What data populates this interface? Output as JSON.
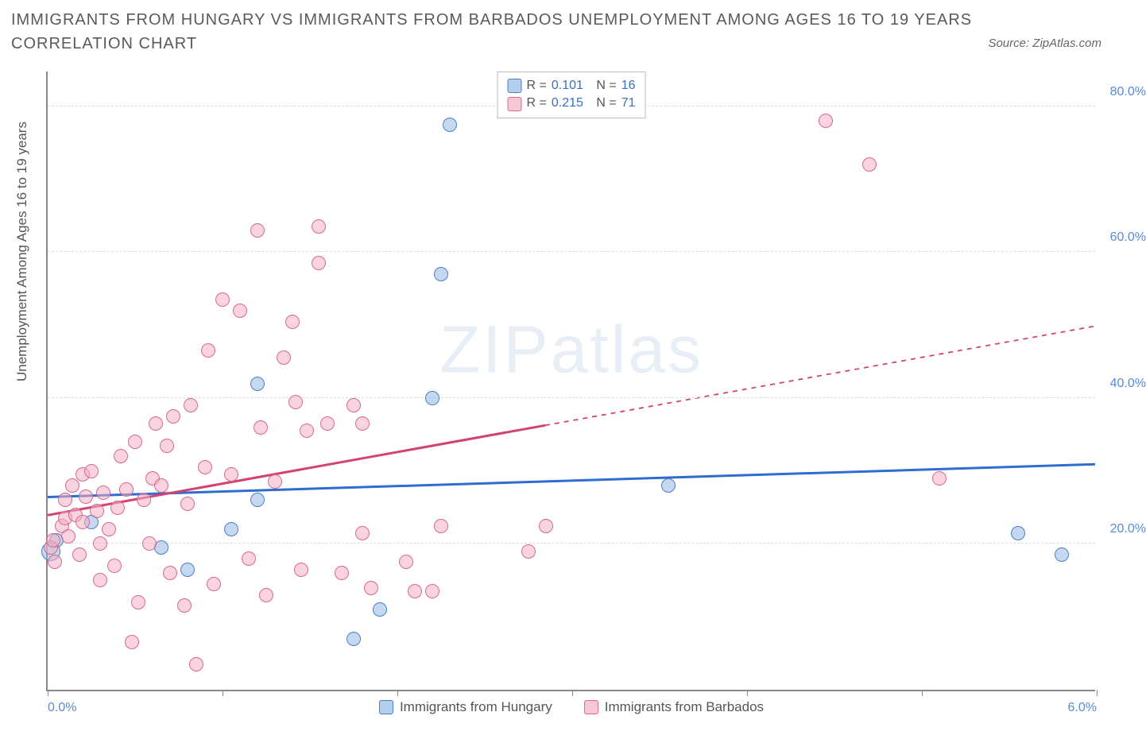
{
  "title": "IMMIGRANTS FROM HUNGARY VS IMMIGRANTS FROM BARBADOS UNEMPLOYMENT AMONG AGES 16 TO 19 YEARS CORRELATION CHART",
  "source": "Source: ZipAtlas.com",
  "ylabel": "Unemployment Among Ages 16 to 19 years",
  "watermark_a": "ZIP",
  "watermark_b": "atlas",
  "chart": {
    "type": "scatter",
    "xlim": [
      0.0,
      6.0
    ],
    "ylim": [
      0.0,
      85.0
    ],
    "x_ticks": [
      0.0,
      1.0,
      2.0,
      3.0,
      4.0,
      5.0,
      6.0
    ],
    "x_tick_labels_shown": {
      "0": "0.0%",
      "6": "6.0%"
    },
    "y_ticks": [
      20.0,
      40.0,
      60.0,
      80.0
    ],
    "y_tick_labels": [
      "20.0%",
      "40.0%",
      "60.0%",
      "80.0%"
    ],
    "grid_color": "#dddddd",
    "background_color": "#ffffff",
    "marker_radius": 9,
    "marker_radius_large": 12,
    "series": [
      {
        "name": "Immigrants from Hungary",
        "color_fill": "#94b9e6",
        "color_stroke": "#4a7fc4",
        "r": "0.101",
        "n": "16",
        "trend": {
          "y_at_xmin": 26.5,
          "y_at_xmax": 31.0,
          "solid_until_x": 6.0,
          "stroke": "#2e6cd0",
          "width": 3
        },
        "points": [
          {
            "x": 0.02,
            "y": 19.0,
            "r": 12
          },
          {
            "x": 0.05,
            "y": 20.5
          },
          {
            "x": 0.25,
            "y": 23.0
          },
          {
            "x": 0.65,
            "y": 19.5
          },
          {
            "x": 0.8,
            "y": 16.5
          },
          {
            "x": 1.05,
            "y": 22.0
          },
          {
            "x": 1.2,
            "y": 26.0
          },
          {
            "x": 1.2,
            "y": 42.0
          },
          {
            "x": 1.75,
            "y": 7.0
          },
          {
            "x": 1.9,
            "y": 11.0
          },
          {
            "x": 2.2,
            "y": 40.0
          },
          {
            "x": 2.25,
            "y": 57.0
          },
          {
            "x": 2.3,
            "y": 77.5
          },
          {
            "x": 3.55,
            "y": 28.0
          },
          {
            "x": 5.55,
            "y": 21.5
          },
          {
            "x": 5.8,
            "y": 18.5
          }
        ]
      },
      {
        "name": "Immigrants from Barbados",
        "color_fill": "#f4afc3",
        "color_stroke": "#d46a8f",
        "r": "0.215",
        "n": "71",
        "trend": {
          "y_at_xmin": 24.0,
          "y_at_xmax": 50.0,
          "solid_until_x": 2.85,
          "stroke": "#d4436f",
          "width": 3
        },
        "points": [
          {
            "x": 0.02,
            "y": 19.5
          },
          {
            "x": 0.03,
            "y": 20.5
          },
          {
            "x": 0.04,
            "y": 17.5
          },
          {
            "x": 0.08,
            "y": 22.5
          },
          {
            "x": 0.1,
            "y": 23.5
          },
          {
            "x": 0.1,
            "y": 26.0
          },
          {
            "x": 0.12,
            "y": 21.0
          },
          {
            "x": 0.14,
            "y": 28.0
          },
          {
            "x": 0.16,
            "y": 24.0
          },
          {
            "x": 0.18,
            "y": 18.5
          },
          {
            "x": 0.2,
            "y": 29.5
          },
          {
            "x": 0.2,
            "y": 23.0
          },
          {
            "x": 0.22,
            "y": 26.5
          },
          {
            "x": 0.25,
            "y": 30.0
          },
          {
            "x": 0.28,
            "y": 24.5
          },
          {
            "x": 0.3,
            "y": 20.0
          },
          {
            "x": 0.3,
            "y": 15.0
          },
          {
            "x": 0.32,
            "y": 27.0
          },
          {
            "x": 0.35,
            "y": 22.0
          },
          {
            "x": 0.38,
            "y": 17.0
          },
          {
            "x": 0.4,
            "y": 25.0
          },
          {
            "x": 0.42,
            "y": 32.0
          },
          {
            "x": 0.45,
            "y": 27.5
          },
          {
            "x": 0.48,
            "y": 6.5
          },
          {
            "x": 0.5,
            "y": 34.0
          },
          {
            "x": 0.52,
            "y": 12.0
          },
          {
            "x": 0.55,
            "y": 26.0
          },
          {
            "x": 0.58,
            "y": 20.0
          },
          {
            "x": 0.6,
            "y": 29.0
          },
          {
            "x": 0.62,
            "y": 36.5
          },
          {
            "x": 0.65,
            "y": 28.0
          },
          {
            "x": 0.68,
            "y": 33.5
          },
          {
            "x": 0.7,
            "y": 16.0
          },
          {
            "x": 0.72,
            "y": 37.5
          },
          {
            "x": 0.78,
            "y": 11.5
          },
          {
            "x": 0.8,
            "y": 25.5
          },
          {
            "x": 0.82,
            "y": 39.0
          },
          {
            "x": 0.85,
            "y": 3.5
          },
          {
            "x": 0.9,
            "y": 30.5
          },
          {
            "x": 0.92,
            "y": 46.5
          },
          {
            "x": 0.95,
            "y": 14.5
          },
          {
            "x": 1.0,
            "y": 53.5
          },
          {
            "x": 1.05,
            "y": 29.5
          },
          {
            "x": 1.1,
            "y": 52.0
          },
          {
            "x": 1.15,
            "y": 18.0
          },
          {
            "x": 1.2,
            "y": 63.0
          },
          {
            "x": 1.22,
            "y": 36.0
          },
          {
            "x": 1.25,
            "y": 13.0
          },
          {
            "x": 1.3,
            "y": 28.5
          },
          {
            "x": 1.35,
            "y": 45.5
          },
          {
            "x": 1.4,
            "y": 50.5
          },
          {
            "x": 1.42,
            "y": 39.5
          },
          {
            "x": 1.45,
            "y": 16.5
          },
          {
            "x": 1.48,
            "y": 35.5
          },
          {
            "x": 1.55,
            "y": 58.5
          },
          {
            "x": 1.55,
            "y": 63.5
          },
          {
            "x": 1.6,
            "y": 36.5
          },
          {
            "x": 1.68,
            "y": 16.0
          },
          {
            "x": 1.75,
            "y": 39.0
          },
          {
            "x": 1.8,
            "y": 21.5
          },
          {
            "x": 1.8,
            "y": 36.5
          },
          {
            "x": 1.85,
            "y": 14.0
          },
          {
            "x": 2.05,
            "y": 17.5
          },
          {
            "x": 2.1,
            "y": 13.5
          },
          {
            "x": 2.2,
            "y": 13.5
          },
          {
            "x": 2.25,
            "y": 22.5
          },
          {
            "x": 2.75,
            "y": 19.0
          },
          {
            "x": 2.85,
            "y": 22.5
          },
          {
            "x": 4.45,
            "y": 78.0
          },
          {
            "x": 4.7,
            "y": 72.0
          },
          {
            "x": 5.1,
            "y": 29.0
          }
        ]
      }
    ]
  },
  "legend_top": [
    {
      "swatch": "blue",
      "r_label": "R =",
      "r_val": "0.101",
      "n_label": "N =",
      "n_val": "16"
    },
    {
      "swatch": "pink",
      "r_label": "R =",
      "r_val": "0.215",
      "n_label": "N =",
      "n_val": "71"
    }
  ],
  "legend_bottom": [
    {
      "swatch": "blue",
      "label": "Immigrants from Hungary"
    },
    {
      "swatch": "pink",
      "label": "Immigrants from Barbados"
    }
  ]
}
